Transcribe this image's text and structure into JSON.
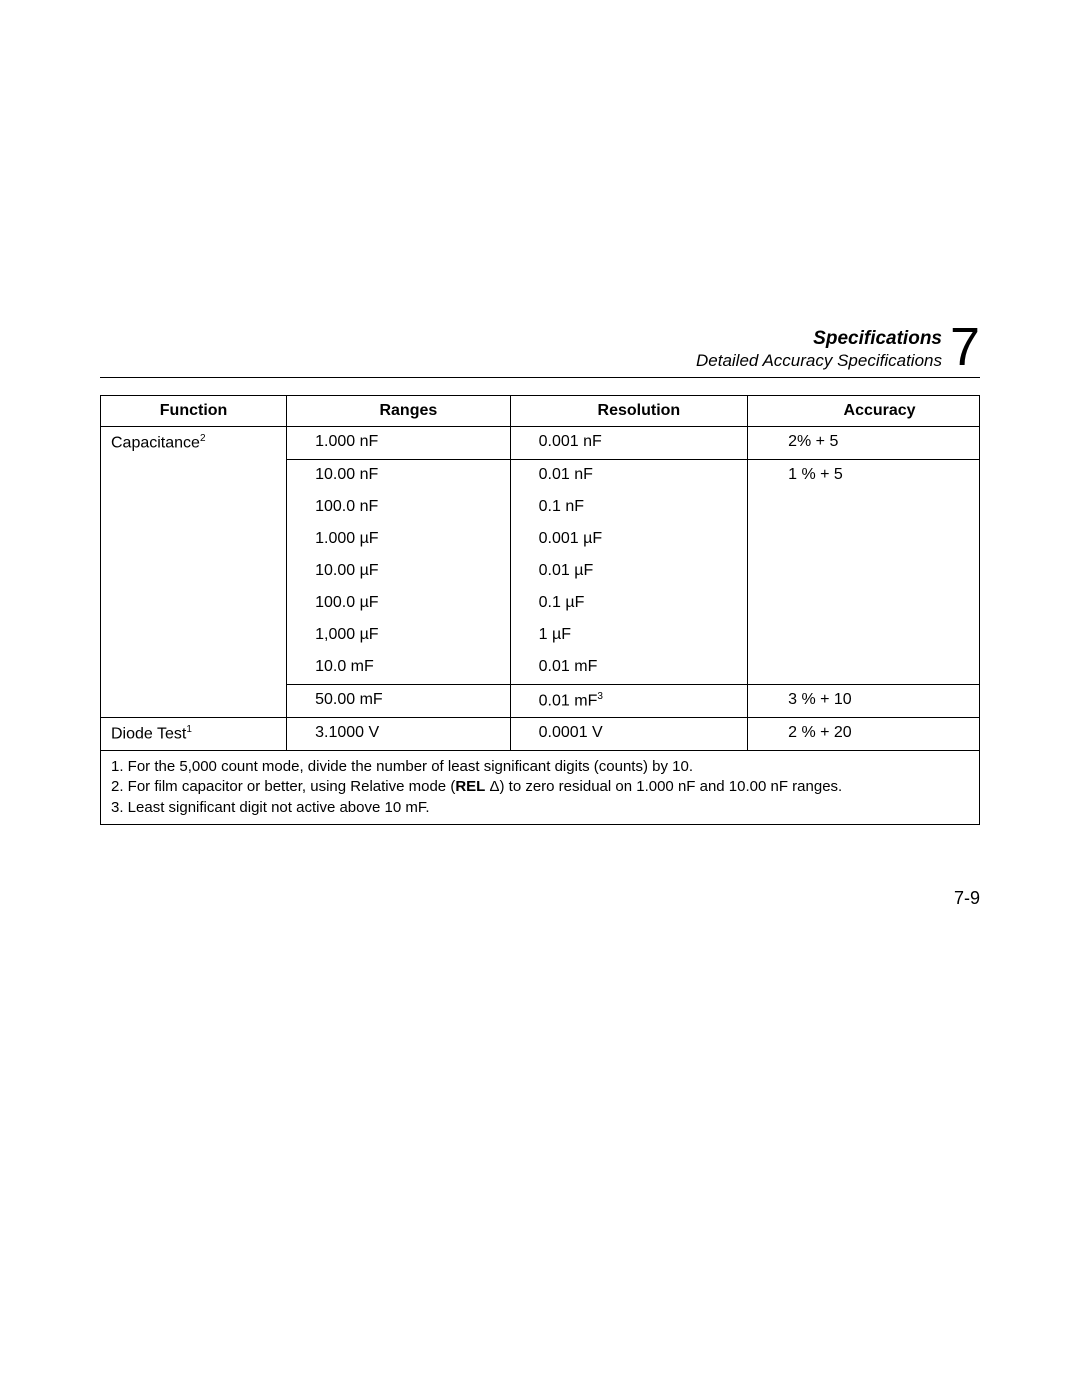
{
  "header": {
    "title": "Specifications",
    "subtitle": "Detailed Accuracy Specifications",
    "chapter": "7"
  },
  "table": {
    "columns": [
      "Function",
      "Ranges",
      "Resolution",
      "Accuracy"
    ],
    "capacitance": {
      "label": "Capacitance",
      "sup": "2",
      "rows": [
        {
          "range": "1.000 nF",
          "res": "0.001 nF",
          "acc": "2% + 5"
        },
        {
          "range": "10.00 nF",
          "res": "0.01 nF",
          "acc": "1 % + 5"
        },
        {
          "range": "100.0 nF",
          "res": "0.1 nF"
        },
        {
          "range": "1.000 µF",
          "res": "0.001 µF"
        },
        {
          "range": "10.00 µF",
          "res": "0.01 µF"
        },
        {
          "range": "100.0 µF",
          "res": "0.1 µF"
        },
        {
          "range": "1,000 µF",
          "res": "1 µF"
        },
        {
          "range": "10.0 mF",
          "res": "0.01 mF"
        },
        {
          "range": "50.00 mF",
          "res": "0.01 mF",
          "res_sup": "3",
          "acc": "3 % + 10"
        }
      ]
    },
    "diode": {
      "label": "Diode Test",
      "sup": "1",
      "range": "3.1000 V",
      "res": "0.0001 V",
      "acc": "2 % + 20"
    }
  },
  "footnotes": {
    "n1": "1. For the 5,000 count mode, divide the number of least significant digits (counts) by 10.",
    "n2a": "2. For film capacitor or better, using Relative mode (",
    "n2b": "REL",
    "n2c": " Δ) to zero residual on 1.000 nF and 10.00 nF ranges.",
    "n3": "3. Least significant digit not active above 10 mF."
  },
  "page_number": "7-9"
}
